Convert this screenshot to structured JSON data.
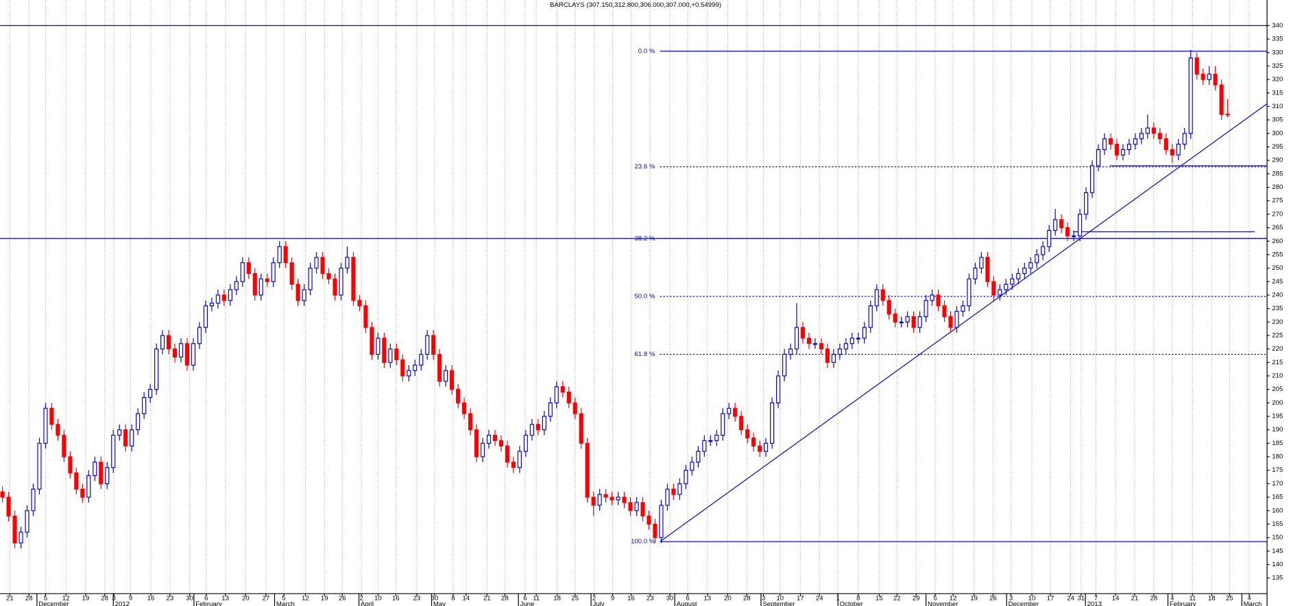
{
  "chart_data": {
    "type": "candlestick",
    "title": "BARCLAYS (307.150,312.800,306.000,307.000,+0.54999)",
    "x": [
      0,
      1,
      2,
      3,
      4,
      5,
      6,
      7,
      8,
      9,
      10,
      11,
      12,
      13,
      14,
      15,
      16,
      17,
      18,
      19,
      20,
      21,
      22,
      23,
      24,
      25,
      26,
      27,
      28,
      29,
      30,
      31,
      32,
      33,
      34,
      35,
      36,
      37,
      38,
      39,
      40,
      41,
      42,
      43,
      44,
      45,
      46,
      47,
      48,
      49,
      50,
      51,
      52,
      53,
      54,
      55,
      56,
      57,
      58,
      59,
      60,
      61,
      62,
      63,
      64,
      65,
      66,
      67,
      68,
      69,
      70,
      71,
      72,
      73,
      74,
      75,
      76,
      77,
      78,
      79,
      80,
      81,
      82,
      83,
      84,
      85,
      86,
      87,
      88,
      89,
      90,
      91,
      92,
      93,
      94,
      95,
      96,
      97,
      98,
      99,
      100,
      101,
      102,
      103,
      104,
      105,
      106,
      107,
      108,
      109,
      110,
      111,
      112,
      113,
      114,
      115,
      116,
      117,
      118,
      119,
      120,
      121,
      122,
      123,
      124,
      125,
      126,
      127,
      128,
      129,
      130,
      131,
      132,
      133,
      134,
      135,
      136,
      137,
      138,
      139,
      140,
      141,
      142,
      143,
      144,
      145,
      146,
      147,
      148,
      149,
      150,
      151,
      152,
      153,
      154,
      155,
      156,
      157,
      158,
      159,
      160,
      161,
      162,
      163,
      164,
      165,
      166,
      167,
      168,
      169,
      170,
      171,
      172,
      173,
      174,
      175,
      176,
      177,
      178,
      179,
      180,
      181,
      182,
      183,
      184,
      185,
      186,
      187,
      188,
      189,
      190,
      191,
      192,
      193,
      194,
      195,
      196,
      197,
      198,
      199
    ],
    "open": [
      167,
      165,
      158,
      148,
      152,
      160,
      168,
      185,
      198,
      192,
      188,
      180,
      174,
      168,
      165,
      173,
      178,
      170,
      176,
      188,
      190,
      184,
      190,
      196,
      202,
      205,
      220,
      225,
      220,
      217,
      222,
      214,
      222,
      228,
      236,
      237,
      240,
      238,
      242,
      245,
      252,
      248,
      240,
      246,
      245,
      252,
      258,
      252,
      244,
      238,
      242,
      250,
      254,
      248,
      246,
      240,
      250,
      254,
      238,
      236,
      228,
      218,
      224,
      215,
      220,
      216,
      210,
      212,
      214,
      218,
      225,
      218,
      208,
      212,
      205,
      200,
      196,
      190,
      180,
      185,
      188,
      186,
      184,
      178,
      176,
      182,
      188,
      192,
      190,
      195,
      200,
      206,
      204,
      200,
      196,
      185,
      165,
      162,
      166,
      165,
      164,
      165,
      163,
      160,
      163,
      158,
      155,
      150,
      162,
      168,
      166,
      170,
      175,
      178,
      182,
      186,
      186,
      188,
      196,
      198,
      195,
      190,
      187,
      184,
      182,
      185,
      200,
      210,
      218,
      220,
      228,
      224,
      222,
      222,
      220,
      215,
      218,
      220,
      222,
      224,
      224,
      228,
      236,
      242,
      238,
      233,
      230,
      230,
      232,
      228,
      232,
      238,
      240,
      236,
      232,
      228,
      234,
      236,
      246,
      250,
      254,
      245,
      240,
      242,
      244,
      246,
      248,
      250,
      252,
      255,
      258,
      264,
      268,
      265,
      262,
      262,
      270,
      278,
      288,
      294,
      298,
      296,
      292,
      294,
      296,
      298,
      300,
      302,
      300,
      298,
      294,
      292,
      296,
      300,
      328,
      322,
      320,
      322,
      318,
      307.15
    ],
    "high": [
      169,
      167,
      160,
      154,
      162,
      170,
      187,
      200,
      200,
      194,
      190,
      182,
      176,
      170,
      175,
      180,
      180,
      178,
      190,
      192,
      192,
      192,
      198,
      204,
      207,
      222,
      227,
      227,
      222,
      224,
      224,
      224,
      230,
      238,
      239,
      242,
      242,
      244,
      247,
      254,
      254,
      250,
      248,
      248,
      254,
      260,
      260,
      254,
      246,
      244,
      252,
      256,
      256,
      250,
      248,
      252,
      258,
      256,
      240,
      238,
      230,
      226,
      226,
      222,
      222,
      218,
      214,
      216,
      220,
      227,
      227,
      220,
      214,
      214,
      207,
      202,
      198,
      192,
      187,
      190,
      190,
      188,
      186,
      180,
      184,
      190,
      194,
      194,
      197,
      202,
      208,
      208,
      206,
      202,
      198,
      187,
      167,
      168,
      168,
      167,
      167,
      167,
      165,
      165,
      165,
      160,
      157,
      164,
      170,
      170,
      172,
      177,
      180,
      184,
      188,
      188,
      190,
      198,
      200,
      200,
      197,
      192,
      189,
      186,
      187,
      202,
      212,
      220,
      222,
      237,
      230,
      226,
      224,
      224,
      222,
      220,
      222,
      224,
      226,
      226,
      230,
      238,
      244,
      244,
      240,
      235,
      232,
      234,
      234,
      234,
      240,
      242,
      242,
      238,
      234,
      236,
      238,
      248,
      252,
      256,
      256,
      247,
      244,
      246,
      248,
      250,
      252,
      254,
      257,
      260,
      266,
      272,
      270,
      267,
      264,
      272,
      280,
      290,
      296,
      300,
      300,
      298,
      296,
      298,
      300,
      302,
      307,
      304,
      302,
      300,
      296,
      298,
      302,
      331,
      330,
      324,
      325,
      325,
      320,
      312.8
    ],
    "low": [
      163,
      156,
      146,
      146,
      150,
      158,
      166,
      183,
      190,
      186,
      178,
      172,
      166,
      163,
      163,
      171,
      168,
      168,
      174,
      186,
      182,
      182,
      188,
      194,
      200,
      203,
      218,
      218,
      215,
      215,
      212,
      212,
      220,
      226,
      234,
      235,
      236,
      236,
      240,
      243,
      246,
      238,
      238,
      243,
      243,
      250,
      250,
      242,
      236,
      236,
      240,
      248,
      246,
      244,
      238,
      238,
      248,
      236,
      234,
      226,
      216,
      216,
      213,
      213,
      214,
      208,
      208,
      210,
      212,
      216,
      216,
      206,
      206,
      203,
      198,
      194,
      188,
      178,
      178,
      183,
      184,
      182,
      176,
      174,
      174,
      180,
      186,
      188,
      188,
      193,
      198,
      202,
      198,
      194,
      183,
      163,
      158,
      160,
      163,
      162,
      162,
      161,
      158,
      158,
      156,
      153,
      148,
      148,
      160,
      164,
      164,
      168,
      173,
      176,
      180,
      184,
      184,
      186,
      194,
      193,
      188,
      185,
      182,
      180,
      180,
      183,
      198,
      208,
      216,
      218,
      222,
      220,
      220,
      218,
      213,
      213,
      216,
      218,
      220,
      222,
      222,
      226,
      234,
      236,
      231,
      228,
      228,
      228,
      226,
      226,
      230,
      236,
      234,
      230,
      226,
      226,
      232,
      234,
      244,
      248,
      243,
      238,
      238,
      240,
      242,
      244,
      246,
      248,
      250,
      253,
      256,
      262,
      263,
      260,
      260,
      260,
      268,
      276,
      286,
      292,
      294,
      290,
      290,
      292,
      294,
      296,
      298,
      298,
      296,
      292,
      289,
      290,
      294,
      298,
      320,
      318,
      318,
      316,
      305,
      306
    ],
    "close": [
      165,
      158,
      148,
      152,
      160,
      168,
      185,
      198,
      192,
      188,
      180,
      174,
      168,
      165,
      173,
      178,
      170,
      176,
      188,
      190,
      184,
      190,
      196,
      202,
      205,
      220,
      225,
      220,
      217,
      222,
      214,
      222,
      228,
      236,
      237,
      240,
      238,
      242,
      245,
      252,
      248,
      240,
      246,
      245,
      252,
      258,
      252,
      244,
      238,
      242,
      250,
      254,
      248,
      246,
      240,
      250,
      254,
      238,
      236,
      228,
      218,
      224,
      215,
      220,
      216,
      210,
      212,
      214,
      218,
      225,
      218,
      208,
      212,
      205,
      200,
      196,
      190,
      180,
      185,
      188,
      186,
      184,
      178,
      176,
      182,
      188,
      192,
      190,
      195,
      200,
      206,
      204,
      200,
      196,
      185,
      165,
      162,
      166,
      165,
      164,
      165,
      163,
      160,
      163,
      158,
      155,
      150,
      162,
      168,
      166,
      170,
      175,
      178,
      182,
      186,
      186,
      188,
      196,
      198,
      195,
      190,
      187,
      184,
      182,
      185,
      200,
      210,
      218,
      220,
      228,
      224,
      222,
      222,
      220,
      215,
      218,
      220,
      222,
      224,
      224,
      228,
      236,
      242,
      238,
      233,
      230,
      230,
      232,
      228,
      232,
      238,
      240,
      236,
      232,
      228,
      234,
      236,
      246,
      250,
      254,
      245,
      240,
      242,
      244,
      246,
      248,
      250,
      252,
      255,
      258,
      264,
      268,
      265,
      262,
      262,
      270,
      278,
      288,
      294,
      298,
      296,
      292,
      294,
      296,
      298,
      300,
      302,
      300,
      298,
      294,
      292,
      296,
      300,
      328,
      322,
      320,
      322,
      318,
      307,
      307
    ],
    "up_color": "#0000ff",
    "down_color": "#ff0000",
    "line_color": "#0000ff",
    "xlim": [
      -0.4,
      205.4
    ],
    "xticks": [
      {
        "value": 1.2,
        "label": "21"
      },
      {
        "value": 4.3,
        "label": "28"
      },
      {
        "value": 7.0,
        "label": "5"
      },
      {
        "value": 10.3,
        "label": "12"
      },
      {
        "value": 13.5,
        "label": "19"
      },
      {
        "value": 16.6,
        "label": "28"
      },
      {
        "value": 18.1,
        "label": "3"
      },
      {
        "value": 20.8,
        "label": "9"
      },
      {
        "value": 24.1,
        "label": "16"
      },
      {
        "value": 27.2,
        "label": "23"
      },
      {
        "value": 30.4,
        "label": "30"
      },
      {
        "value": 33.1,
        "label": "6"
      },
      {
        "value": 36.2,
        "label": "13"
      },
      {
        "value": 39.5,
        "label": "20"
      },
      {
        "value": 42.8,
        "label": "27"
      },
      {
        "value": 45.7,
        "label": "5"
      },
      {
        "value": 49.2,
        "label": "12"
      },
      {
        "value": 52.3,
        "label": "19"
      },
      {
        "value": 55.2,
        "label": "26"
      },
      {
        "value": 58.3,
        "label": "2"
      },
      {
        "value": 61.0,
        "label": "10"
      },
      {
        "value": 63.9,
        "label": "16"
      },
      {
        "value": 67.3,
        "label": "23"
      },
      {
        "value": 70.2,
        "label": "30"
      },
      {
        "value": 73.2,
        "label": "8"
      },
      {
        "value": 75.3,
        "label": "14"
      },
      {
        "value": 78.7,
        "label": "21"
      },
      {
        "value": 81.6,
        "label": "28"
      },
      {
        "value": 84.9,
        "label": "6"
      },
      {
        "value": 86.7,
        "label": "11"
      },
      {
        "value": 90.1,
        "label": "18"
      },
      {
        "value": 93.0,
        "label": "25"
      },
      {
        "value": 96.1,
        "label": "2"
      },
      {
        "value": 99.1,
        "label": "9"
      },
      {
        "value": 102.1,
        "label": "16"
      },
      {
        "value": 105.2,
        "label": "23"
      },
      {
        "value": 108.4,
        "label": "30"
      },
      {
        "value": 111.3,
        "label": "6"
      },
      {
        "value": 114.5,
        "label": "13"
      },
      {
        "value": 117.8,
        "label": "20"
      },
      {
        "value": 120.9,
        "label": "28"
      },
      {
        "value": 123.6,
        "label": "3"
      },
      {
        "value": 126.3,
        "label": "10"
      },
      {
        "value": 129.6,
        "label": "17"
      },
      {
        "value": 132.7,
        "label": "24"
      },
      {
        "value": 135.7,
        "label": "1"
      },
      {
        "value": 139.0,
        "label": "8"
      },
      {
        "value": 142.4,
        "label": "15"
      },
      {
        "value": 145.3,
        "label": "22"
      },
      {
        "value": 148.4,
        "label": "29"
      },
      {
        "value": 151.5,
        "label": "5"
      },
      {
        "value": 154.4,
        "label": "12"
      },
      {
        "value": 157.8,
        "label": "19"
      },
      {
        "value": 160.9,
        "label": "26"
      },
      {
        "value": 163.8,
        "label": "3"
      },
      {
        "value": 167.2,
        "label": "10"
      },
      {
        "value": 170.2,
        "label": "17"
      },
      {
        "value": 173.5,
        "label": "24"
      },
      {
        "value": 175.2,
        "label": "31"
      },
      {
        "value": 177.6,
        "label": "7"
      },
      {
        "value": 180.8,
        "label": "14"
      },
      {
        "value": 183.9,
        "label": "21"
      },
      {
        "value": 187.0,
        "label": "28"
      },
      {
        "value": 190.0,
        "label": "4"
      },
      {
        "value": 193.3,
        "label": "11"
      },
      {
        "value": 196.4,
        "label": "18"
      },
      {
        "value": 199.3,
        "label": "25"
      },
      {
        "value": 202.5,
        "label": "4"
      }
    ],
    "month_labels": [
      {
        "value": 5.6,
        "label": "December"
      },
      {
        "value": 18.0,
        "label": "2012"
      },
      {
        "value": 31.1,
        "label": "February"
      },
      {
        "value": 44.2,
        "label": "March"
      },
      {
        "value": 57.9,
        "label": "April"
      },
      {
        "value": 69.7,
        "label": "May"
      },
      {
        "value": 83.8,
        "label": "June"
      },
      {
        "value": 95.6,
        "label": "July"
      },
      {
        "value": 109.2,
        "label": "August"
      },
      {
        "value": 123.2,
        "label": "September"
      },
      {
        "value": 135.7,
        "label": "October"
      },
      {
        "value": 150.0,
        "label": "November"
      },
      {
        "value": 163.1,
        "label": "December"
      },
      {
        "value": 175.9,
        "label": "2013"
      },
      {
        "value": 189.3,
        "label": "February"
      },
      {
        "value": 201.3,
        "label": "March"
      }
    ],
    "ylim": [
      129.2,
      349.5
    ],
    "yticks": [
      135,
      140,
      145,
      150,
      155,
      160,
      165,
      170,
      175,
      180,
      185,
      190,
      195,
      200,
      205,
      210,
      215,
      220,
      225,
      230,
      235,
      240,
      245,
      250,
      255,
      260,
      265,
      270,
      275,
      280,
      285,
      290,
      295,
      300,
      305,
      310,
      315,
      320,
      325,
      330,
      335,
      340
    ],
    "grid": true,
    "fib_x": [
      106.8,
      205.4
    ],
    "fib_levels": [
      {
        "label": "0.0 %",
        "value": 330.5,
        "dashed": false
      },
      {
        "label": "23.6 %",
        "value": 287.6,
        "dashed": true
      },
      {
        "label": "38.2 %",
        "value": 261.0,
        "dashed": true
      },
      {
        "label": "50.0 %",
        "value": 239.5,
        "dashed": true
      },
      {
        "label": "61.8 %",
        "value": 218.0,
        "dashed": true
      },
      {
        "label": "100.0 %",
        "value": 148.5,
        "dashed": false
      }
    ],
    "lines": [
      {
        "x": [
          -0.4,
          205.4
        ],
        "y": [
          340,
          340
        ]
      },
      {
        "x": [
          -0.4,
          205.4
        ],
        "y": [
          261,
          261
        ]
      },
      {
        "x": [
          179.9,
          205.4
        ],
        "y": [
          288,
          288
        ]
      },
      {
        "x": [
          173.9,
          203.4
        ],
        "y": [
          263.5,
          263.5
        ]
      },
      {
        "x": [
          106.8,
          205.4
        ],
        "y": [
          148.5,
          311
        ]
      }
    ]
  }
}
